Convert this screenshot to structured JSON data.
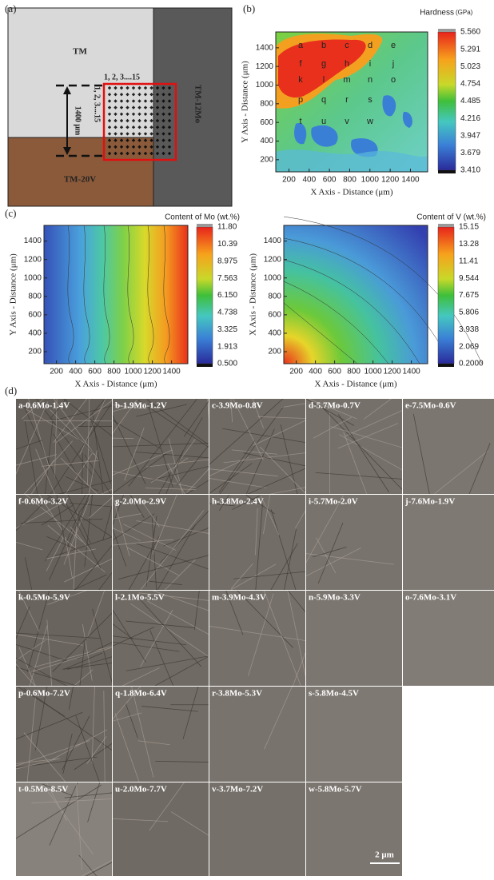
{
  "panel_labels": [
    "(a)",
    "(b)",
    "(c)",
    "(d)"
  ],
  "schematic": {
    "top_label": "TM",
    "right_label": "TM-12Mo",
    "bottom_label": "TM-20V",
    "row_label": "1, 2, 3....15",
    "col_label": "1, 2, 3....15",
    "dimension": "1400 μm"
  },
  "hardness_map": {
    "title": "Hardness",
    "unit": "(GPa)",
    "x_axis_title": "X Axis - Distance (μm)",
    "y_axis_title": "Y Axis - Distance (μm)",
    "xticks": [
      "200",
      "400",
      "600",
      "800",
      "1000",
      "1200",
      "1400"
    ],
    "yticks": [
      "200",
      "400",
      "600",
      "800",
      "1000",
      "1200",
      "1400"
    ],
    "colorbar_ticks": [
      "5.560",
      "5.291",
      "5.023",
      "4.754",
      "4.485",
      "4.216",
      "3.947",
      "3.679",
      "3.410"
    ],
    "point_labels": [
      "a",
      "b",
      "c",
      "d",
      "e",
      "f",
      "g",
      "h",
      "i",
      "j",
      "k",
      "l",
      "m",
      "n",
      "o",
      "p",
      "q",
      "r",
      "s",
      "t",
      "u",
      "v",
      "w"
    ]
  },
  "mo_map": {
    "title": "Content of Mo (wt.%)",
    "x_axis_title": "X Axis - Distance (μm)",
    "y_axis_title": "Y Axis - Distance (μm)",
    "xticks": [
      "200",
      "400",
      "600",
      "800",
      "1000",
      "1200",
      "1400"
    ],
    "yticks": [
      "200",
      "400",
      "600",
      "800",
      "1000",
      "1200",
      "1400"
    ],
    "colorbar_ticks": [
      "11.80",
      "10.39",
      "8.975",
      "7.563",
      "6.150",
      "4.738",
      "3.325",
      "1.913",
      "0.500"
    ]
  },
  "v_map": {
    "title": "Content of V (wt.%)",
    "x_axis_title": "X Axis - Distance (μm)",
    "y_axis_title": "X Axis - Distance (μm)",
    "xticks": [
      "200",
      "400",
      "600",
      "800",
      "1000",
      "1200",
      "1400"
    ],
    "yticks": [
      "200",
      "400",
      "600",
      "800",
      "1000",
      "1200",
      "1400"
    ],
    "colorbar_ticks": [
      "15.15",
      "13.28",
      "11.41",
      "9.544",
      "7.675",
      "5.806",
      "3.938",
      "2.069",
      "0.2000"
    ]
  },
  "micrographs": {
    "tiles": [
      "a-0.6Mo-1.4V",
      "b-1.9Mo-1.2V",
      "c-3.9Mo-0.8V",
      "d-5.7Mo-0.7V",
      "e-7.5Mo-0.6V",
      "f-0.6Mo-3.2V",
      "g-2.0Mo-2.9V",
      "h-3.8Mo-2.4V",
      "i-5.7Mo-2.0V",
      "j-7.6Mo-1.9V",
      "k-0.5Mo-5.9V",
      "l-2.1Mo-5.5V",
      "m-3.9Mo-4.3V",
      "n-5.9Mo-3.3V",
      "o-7.6Mo-3.1V",
      "p-0.6Mo-7.2V",
      "q-1.8Mo-6.4V",
      "r-3.8Mo-5.3V",
      "s-5.8Mo-4.5V",
      "t-0.5Mo-8.5V",
      "u-2.0Mo-7.7V",
      "v-3.7Mo-7.2V",
      "w-5.8Mo-5.7V"
    ],
    "scale_bar": "2 μm"
  }
}
